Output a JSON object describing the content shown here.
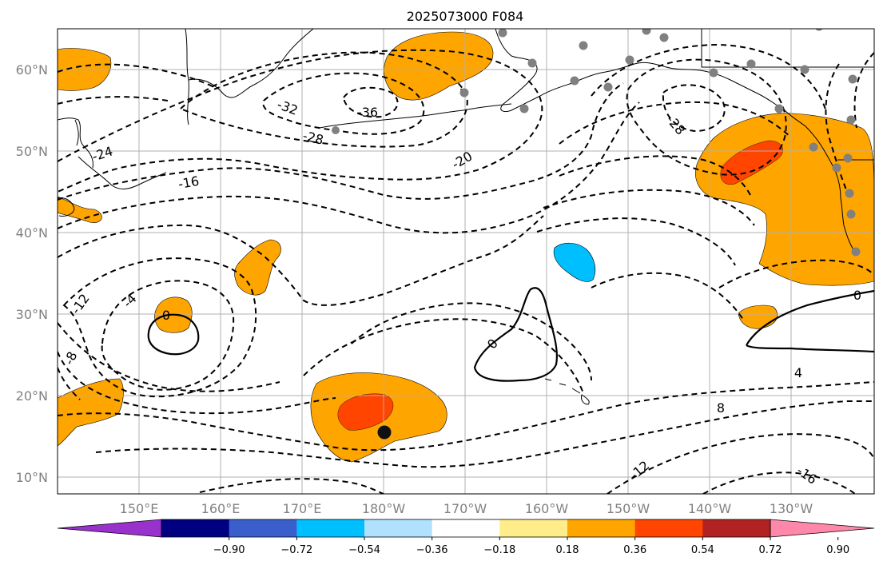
{
  "title": "2025073000 F084",
  "lat_labels": [
    "10°N",
    "20°N",
    "30°N",
    "40°N",
    "50°N",
    "60°N"
  ],
  "lon_labels": [
    "150°E",
    "160°E",
    "170°E",
    "180°W",
    "170°W",
    "160°W",
    "150°W",
    "140°W",
    "130°W"
  ],
  "colorbar": {
    "colors": [
      "#9932CC",
      "#000080",
      "#3A5FCD",
      "#00BFFF",
      "#B0E2FF",
      "#FFFFFF",
      "#FFEC8B",
      "#FFA500",
      "#FF4500",
      "#B22222",
      "#FF88AA"
    ],
    "tick_labels": [
      "−0.90",
      "−0.72",
      "−0.54",
      "−0.36",
      "−0.18",
      "0.18",
      "0.36",
      "0.54",
      "0.72",
      "0.90"
    ]
  },
  "contour_labels": [
    "-36",
    "-32",
    "-28",
    "-28",
    "-24",
    "-20",
    "-16",
    "-12",
    "-8",
    "-4",
    "0",
    "0",
    "0",
    "4",
    "8",
    "-12",
    "-16"
  ],
  "colors": {
    "grid": "#b0b0b0",
    "land_outline": "#000000",
    "station": "#808080",
    "marker": "#111111"
  }
}
